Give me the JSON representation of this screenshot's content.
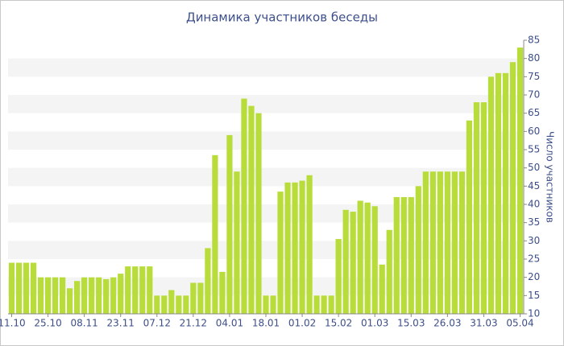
{
  "chart_data": {
    "type": "bar",
    "title": "Динамика участников беседы",
    "y_label": "Число участников",
    "categories": [
      "11.10",
      null,
      null,
      null,
      null,
      "25.10",
      null,
      null,
      null,
      null,
      "08.11",
      null,
      null,
      null,
      null,
      "23.11",
      null,
      null,
      null,
      null,
      "07.12",
      null,
      null,
      null,
      null,
      "21.12",
      null,
      null,
      null,
      null,
      "04.01",
      null,
      null,
      null,
      null,
      "18.01",
      null,
      null,
      null,
      null,
      "01.02",
      null,
      null,
      null,
      null,
      "15.02",
      null,
      null,
      null,
      null,
      "01.03",
      null,
      null,
      null,
      null,
      "15.03",
      null,
      null,
      null,
      null,
      "26.03",
      null,
      null,
      null,
      null,
      "31.03",
      null,
      null,
      null,
      null,
      "05.04"
    ],
    "values": [
      24,
      24,
      24,
      24,
      20,
      20,
      20,
      20,
      17,
      19,
      20,
      20,
      20,
      19.5,
      20,
      21,
      23,
      23,
      23,
      23,
      15,
      15,
      16.5,
      15,
      15,
      18.5,
      18.5,
      28,
      53.5,
      21.5,
      59,
      49,
      69,
      67,
      65,
      15,
      15,
      43.5,
      46,
      46,
      46.5,
      48,
      15,
      15,
      15,
      30.5,
      38.5,
      38,
      41,
      40.5,
      39.5,
      23.5,
      33,
      42,
      42,
      42,
      45,
      49,
      49,
      49,
      49,
      49,
      49,
      63,
      68,
      68,
      75,
      76,
      76,
      79,
      83
    ],
    "color": "#b8dc3a",
    "ylim": [
      10,
      85
    ],
    "yticks": [
      10,
      15,
      20,
      25,
      30,
      35,
      40,
      45,
      50,
      55,
      60,
      65,
      70,
      75,
      80,
      85
    ],
    "grid": true
  }
}
